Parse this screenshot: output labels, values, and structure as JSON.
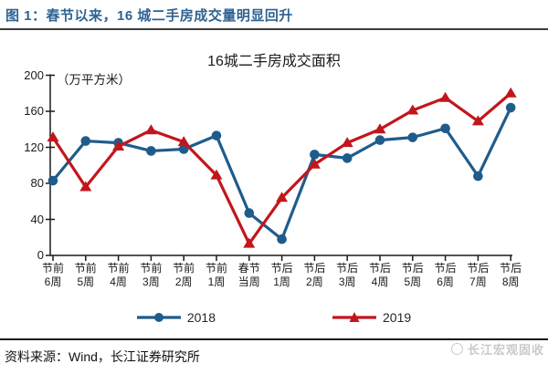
{
  "header": {
    "title": "图 1：春节以来，16 城二手房成交量明显回升"
  },
  "footer": {
    "source": "资料来源：Wind，长江证券研究所",
    "watermark": "长江宏观固收"
  },
  "colors": {
    "figure_title": "#2e6391",
    "axis": "#1a1a1a",
    "series_2018": "#1f5c8b",
    "series_2019": "#c2161d",
    "watermark_gray": "#c9c9c9"
  },
  "chart_data": {
    "type": "line",
    "title": "16城二手房成交面积",
    "unit_label": "（万平方米）",
    "categories": [
      "节前6周",
      "节前5周",
      "节前4周",
      "节前3周",
      "节前2周",
      "节前1周",
      "春节当周",
      "节后1周",
      "节后2周",
      "节后3周",
      "节后4周",
      "节后5周",
      "节后6周",
      "节后7周",
      "节后8周"
    ],
    "series": [
      {
        "name": "2018",
        "color": "#1f5c8b",
        "marker": "circle",
        "values": [
          83,
          127,
          125,
          116,
          118,
          133,
          47,
          18,
          112,
          108,
          128,
          131,
          141,
          88,
          164
        ]
      },
      {
        "name": "2019",
        "color": "#c2161d",
        "marker": "triangle",
        "values": [
          131,
          76,
          121,
          139,
          126,
          89,
          13,
          64,
          101,
          125,
          140,
          161,
          175,
          149,
          180
        ]
      }
    ],
    "ylim": [
      0,
      200
    ],
    "yticks": [
      0,
      40,
      80,
      120,
      160,
      200
    ],
    "grid": false,
    "legend_position": "bottom"
  }
}
